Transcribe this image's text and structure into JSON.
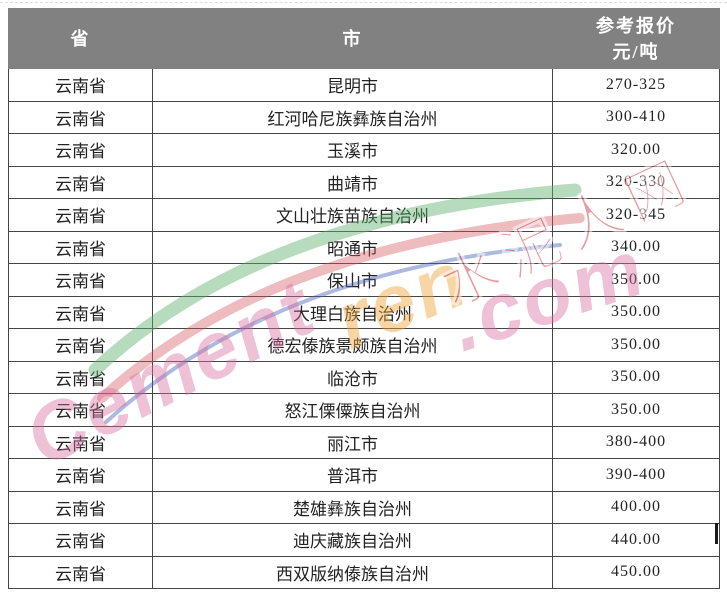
{
  "theme": {
    "page_bg": "#ffffff",
    "header_bg": "#818181",
    "header_text": "#ffffff",
    "border_color": "#454545",
    "cell_text": "#232323"
  },
  "table": {
    "header": {
      "province": "省",
      "city": "市",
      "price_line1": "参考报价",
      "price_line2": "元/吨"
    },
    "rows": [
      {
        "province": "云南省",
        "city": "昆明市",
        "price": "270-325"
      },
      {
        "province": "云南省",
        "city": "红河哈尼族彝族自治州",
        "price": "300-410"
      },
      {
        "province": "云南省",
        "city": "玉溪市",
        "price": "320.00"
      },
      {
        "province": "云南省",
        "city": "曲靖市",
        "price": "320-330"
      },
      {
        "province": "云南省",
        "city": "文山壮族苗族自治州",
        "price": "320-345"
      },
      {
        "province": "云南省",
        "city": "昭通市",
        "price": "340.00"
      },
      {
        "province": "云南省",
        "city": "保山市",
        "price": "350.00"
      },
      {
        "province": "云南省",
        "city": "大理白族自治州",
        "price": "350.00"
      },
      {
        "province": "云南省",
        "city": "德宏傣族景颇族自治州",
        "price": "350.00"
      },
      {
        "province": "云南省",
        "city": "临沧市",
        "price": "350.00"
      },
      {
        "province": "云南省",
        "city": "怒江傈僳族自治州",
        "price": "350.00"
      },
      {
        "province": "云南省",
        "city": "丽江市",
        "price": "380-400"
      },
      {
        "province": "云南省",
        "city": "普洱市",
        "price": "390-400"
      },
      {
        "province": "云南省",
        "city": "楚雄彝族自治州",
        "price": "400.00"
      },
      {
        "province": "云南省",
        "city": "迪庆藏族自治州",
        "price": "440.00"
      },
      {
        "province": "云南省",
        "city": "西双版纳傣族自治州",
        "price": "450.00"
      }
    ]
  },
  "watermark": {
    "brand_cement": "Cement",
    "brand_ren": "ren",
    "brand_com": ".com",
    "cn_text": "水泥人网",
    "colors": {
      "pink": "#d96e9e",
      "yellow": "#f0a437",
      "red": "#d63a44",
      "arc_green": "#5faf6d",
      "arc_red": "#d4565e",
      "arc_blue": "#4a63b8"
    }
  }
}
